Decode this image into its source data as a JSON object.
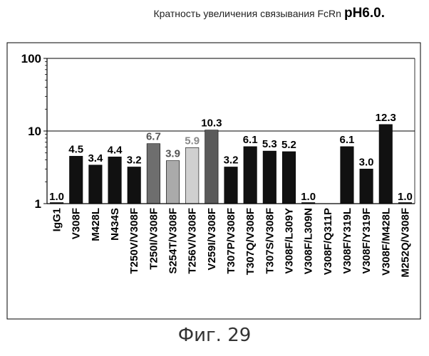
{
  "title": {
    "text": "Кратность увеличения связывания FcRn",
    "ph": "pH6.0."
  },
  "caption": "Фиг. 29",
  "chart_data": {
    "type": "bar",
    "yscale": "log",
    "ylim": [
      1,
      100
    ],
    "yticks": [
      "1",
      "10",
      "100"
    ],
    "grid": "horizontal at 10",
    "categories": [
      "IgG1",
      "V308F",
      "M428L",
      "N434S",
      "T250V/V308F",
      "T250I/V308F",
      "S254T/V308F",
      "T256V/V308F",
      "V259I/V308F",
      "T307P/V308F",
      "T307Q/V308F",
      "T307S/V308F",
      "V308F/L309Y",
      "V308F/L309N",
      "V308F/Q311P",
      "V308F/Y319L",
      "V308F/Y319F",
      "V308F/M428L",
      "M252Q/V308F"
    ],
    "values": [
      1.0,
      4.5,
      3.4,
      4.4,
      3.2,
      6.7,
      3.9,
      5.9,
      10.3,
      3.2,
      6.1,
      5.3,
      5.2,
      1.0,
      null,
      6.1,
      3.0,
      12.3,
      1.0
    ],
    "labels": [
      "1.0",
      "4.5",
      "3.4",
      "4.4",
      "3.2",
      "6.7",
      "3.9",
      "5.9",
      "10.3",
      "3.2",
      "6.1",
      "5.3",
      "5.2",
      "1.0",
      "",
      "6.1",
      "3.0",
      "12.3",
      "1.0"
    ],
    "bar_fills": [
      "#111111",
      "#111111",
      "#111111",
      "#111111",
      "#111111",
      "#6e6e6e",
      "#aaaaaa",
      "#d0d0d0",
      "#5a5a5a",
      "#111111",
      "#111111",
      "#111111",
      "#111111",
      "#111111",
      "#111111",
      "#111111",
      "#111111",
      "#111111",
      "#111111"
    ],
    "label_colors": [
      "#000000",
      "#000000",
      "#000000",
      "#000000",
      "#000000",
      "#555555",
      "#555555",
      "#888888",
      "#000000",
      "#000000",
      "#000000",
      "#000000",
      "#000000",
      "#000000",
      "#000000",
      "#000000",
      "#000000",
      "#000000",
      "#000000"
    ]
  }
}
